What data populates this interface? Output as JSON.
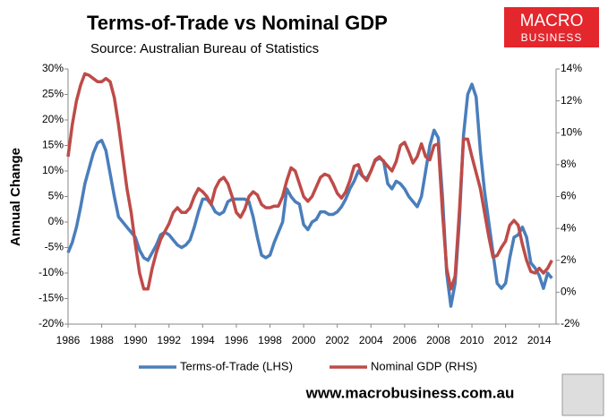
{
  "chart_data": {
    "type": "line",
    "title": "Terms-of-Trade vs Nominal GDP",
    "subtitle": "Source: Australian Bureau of Statistics",
    "y_label": "Annual Change",
    "x": [
      1986,
      1986.25,
      1986.5,
      1986.75,
      1987,
      1987.25,
      1987.5,
      1987.75,
      1988,
      1988.25,
      1988.5,
      1988.75,
      1989,
      1989.25,
      1989.5,
      1989.75,
      1990,
      1990.25,
      1990.5,
      1990.75,
      1991,
      1991.25,
      1991.5,
      1991.75,
      1992,
      1992.25,
      1992.5,
      1992.75,
      1993,
      1993.25,
      1993.5,
      1993.75,
      1994,
      1994.25,
      1994.5,
      1994.75,
      1995,
      1995.25,
      1995.5,
      1995.75,
      1996,
      1996.25,
      1996.5,
      1996.75,
      1997,
      1997.25,
      1997.5,
      1997.75,
      1998,
      1998.25,
      1998.5,
      1998.75,
      1999,
      1999.25,
      1999.5,
      1999.75,
      2000,
      2000.25,
      2000.5,
      2000.75,
      2001,
      2001.25,
      2001.5,
      2001.75,
      2002,
      2002.25,
      2002.5,
      2002.75,
      2003,
      2003.25,
      2003.5,
      2003.75,
      2004,
      2004.25,
      2004.5,
      2004.75,
      2005,
      2005.25,
      2005.5,
      2005.75,
      2006,
      2006.25,
      2006.5,
      2006.75,
      2007,
      2007.25,
      2007.5,
      2007.75,
      2008,
      2008.25,
      2008.5,
      2008.75,
      2009,
      2009.25,
      2009.5,
      2009.75,
      2010,
      2010.25,
      2010.5,
      2010.75,
      2011,
      2011.25,
      2011.5,
      2011.75,
      2012,
      2012.25,
      2012.5,
      2012.75,
      2013,
      2013.25,
      2013.5,
      2013.75,
      2014,
      2014.25,
      2014.5,
      2014.75
    ],
    "series": [
      {
        "name": "Terms-of-Trade (LHS)",
        "color": "#4a7ebb",
        "axis": "y",
        "values": [
          -6,
          -4,
          -1,
          3,
          7.5,
          10.5,
          13.5,
          15.5,
          16,
          14,
          9.5,
          5,
          1,
          0,
          -1,
          -2,
          -3,
          -5.5,
          -7,
          -7.5,
          -6,
          -4.5,
          -2.5,
          -2,
          -2.5,
          -3.5,
          -4.5,
          -5,
          -4.5,
          -3.5,
          -1,
          2,
          4.5,
          4.5,
          3.5,
          2,
          1.5,
          2,
          4,
          4.5,
          4.5,
          4.5,
          4.5,
          4,
          1,
          -3,
          -6.5,
          -7,
          -6.5,
          -4,
          -2,
          0,
          6.5,
          5,
          4,
          3.5,
          -0.5,
          -1.5,
          0,
          0.5,
          2,
          2,
          1.5,
          1.5,
          2,
          3,
          4.5,
          6.5,
          8,
          10,
          9,
          8.5,
          10,
          12,
          12.5,
          12,
          7.5,
          6.5,
          8,
          7.5,
          6.5,
          5,
          4,
          3,
          5,
          10,
          15,
          18,
          16.5,
          5,
          -10,
          -16.5,
          -12,
          0,
          17,
          25,
          27,
          24.5,
          14,
          6,
          0,
          -6,
          -12,
          -13,
          -12,
          -7,
          -3,
          -2.5,
          -1,
          -3,
          -8,
          -9,
          -10.5,
          -13,
          -10,
          -11
        ]
      },
      {
        "name": "Nominal GDP (RHS)",
        "color": "#be4b48",
        "axis": "y2",
        "values": [
          8.5,
          10.5,
          12,
          13,
          13.7,
          13.6,
          13.4,
          13.2,
          13.2,
          13.4,
          13.2,
          12.2,
          10.5,
          8.5,
          6.5,
          5,
          3,
          1.2,
          0.2,
          0.2,
          1.5,
          2.5,
          3.3,
          3.8,
          4.3,
          5,
          5.3,
          5,
          5,
          5.3,
          6,
          6.5,
          6.3,
          6,
          5.5,
          6.5,
          7,
          7.2,
          6.8,
          6,
          5,
          4.7,
          5.2,
          6,
          6.3,
          6.1,
          5.5,
          5.3,
          5.3,
          5.4,
          5.4,
          6,
          7,
          7.8,
          7.6,
          6.8,
          6,
          5.7,
          6,
          6.6,
          7.2,
          7.4,
          7.3,
          6.8,
          6.2,
          5.9,
          6.3,
          7,
          7.9,
          8,
          7.3,
          7,
          7.6,
          8.3,
          8.5,
          8.2,
          7.9,
          7.6,
          8.2,
          9.2,
          9.4,
          8.8,
          8.1,
          8.5,
          9.3,
          8.5,
          8.3,
          9.2,
          9.3,
          5,
          1.5,
          0.2,
          1,
          5,
          9.6,
          9.6,
          8.5,
          7.5,
          6.5,
          5,
          3.5,
          2.2,
          2.3,
          2.8,
          3.2,
          4.2,
          4.5,
          4.2,
          3,
          2,
          1.3,
          1.2,
          1.5,
          1.2,
          1.5,
          2
        ]
      }
    ],
    "xlim": [
      1986,
      2015
    ],
    "xticks": [
      1986,
      1988,
      1990,
      1992,
      1994,
      1996,
      1998,
      2000,
      2002,
      2004,
      2006,
      2008,
      2010,
      2012,
      2014
    ],
    "ylim": [
      -20,
      30
    ],
    "yticks": [
      {
        "value": -20,
        "label": "-20%"
      },
      {
        "value": -15,
        "label": "-15%"
      },
      {
        "value": -10,
        "label": "-10%"
      },
      {
        "value": -5,
        "label": "-5%"
      },
      {
        "value": 0,
        "label": "0%"
      },
      {
        "value": 5,
        "label": "5%"
      },
      {
        "value": 10,
        "label": "10%"
      },
      {
        "value": 15,
        "label": "15%"
      },
      {
        "value": 20,
        "label": "20%"
      },
      {
        "value": 25,
        "label": "25%"
      },
      {
        "value": 30,
        "label": "30%"
      }
    ],
    "y2lim": [
      -2,
      14
    ],
    "y2ticks": [
      {
        "value": -2,
        "label": "-2%"
      },
      {
        "value": 0,
        "label": "0%"
      },
      {
        "value": 2,
        "label": "2%"
      },
      {
        "value": 4,
        "label": "4%"
      },
      {
        "value": 6,
        "label": "6%"
      },
      {
        "value": 8,
        "label": "8%"
      },
      {
        "value": 10,
        "label": "10%"
      },
      {
        "value": 12,
        "label": "12%"
      },
      {
        "value": 14,
        "label": "14%"
      }
    ],
    "grid": false,
    "legend": "bottom"
  },
  "branding": {
    "logo": [
      "MACRO",
      "BUSINESS"
    ],
    "website": "www.macrobusiness.com.au"
  }
}
